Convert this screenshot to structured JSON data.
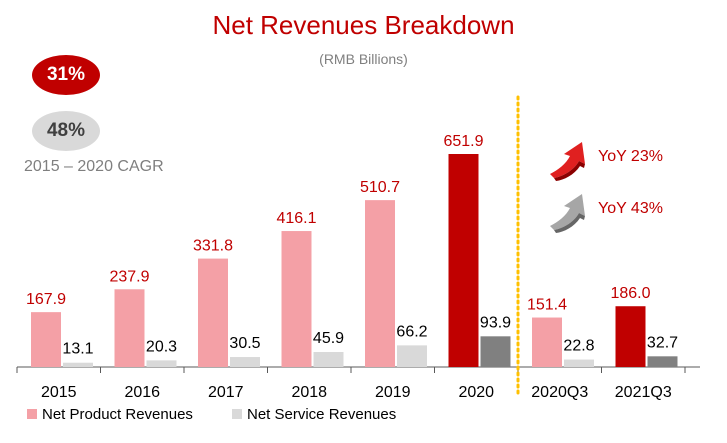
{
  "chart_data": {
    "type": "bar",
    "title": "Net Revenues Breakdown",
    "subtitle": "(RMB Billions)",
    "categories": [
      "2015",
      "2016",
      "2017",
      "2018",
      "2019",
      "2020",
      "2020Q3",
      "2021Q3"
    ],
    "series": [
      {
        "name": "Net Product Revenues",
        "values": [
          167.9,
          237.9,
          331.8,
          416.1,
          510.7,
          651.9,
          151.4,
          186.0
        ]
      },
      {
        "name": "Net Service Revenues",
        "values": [
          13.1,
          20.3,
          30.5,
          45.9,
          66.2,
          93.9,
          22.8,
          32.7
        ]
      }
    ],
    "value_labels": {
      "product": [
        "167.9",
        "237.9",
        "331.8",
        "416.1",
        "510.7",
        "651.9",
        "151.4",
        "186.0"
      ],
      "service": [
        "13.1",
        "20.3",
        "30.5",
        "45.9",
        "66.2",
        "93.9",
        "22.8",
        "32.7"
      ]
    },
    "highlighted_categories": [
      "2020",
      "2021Q3"
    ],
    "legend_position": "bottom-left",
    "grid": false,
    "colors": {
      "product": "#f4a0a6",
      "product_highlight": "#c00000",
      "service": "#d9d9d9",
      "service_highlight": "#808080",
      "value_label_product": "#c00000",
      "value_label_service": "#000000",
      "divider": "#ffc000"
    }
  },
  "cagr": {
    "product_badge": "31%",
    "service_badge": "48%",
    "label": "2015 – 2020 CAGR"
  },
  "yoy": {
    "product": "YoY 23%",
    "service": "YoY 43%"
  }
}
